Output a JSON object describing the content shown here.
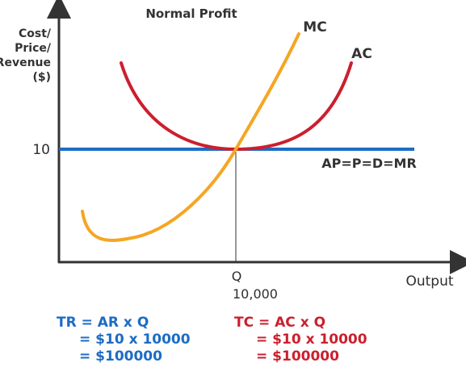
{
  "diagram": {
    "title": "Normal Profit",
    "y_axis_label": [
      "Cost/",
      "Price/",
      "Revenue",
      "($)"
    ],
    "x_axis_label": "Output",
    "price_tick": "10",
    "quantity_tick": [
      "Q",
      "10,000"
    ],
    "curves": {
      "mc": "MC",
      "ac": "AC",
      "ar": "AP=P=D=MR"
    },
    "colors": {
      "axis": "#333333",
      "mc": "#f5a623",
      "ac": "#cc1f2e",
      "ar": "#1c6cc4"
    }
  },
  "equations": {
    "revenue": [
      "TR = AR x Q",
      "= $10 x 10000",
      "= $100000"
    ],
    "cost": [
      "TC = AC x Q",
      "= $10 x 10000",
      "= $100000"
    ]
  }
}
